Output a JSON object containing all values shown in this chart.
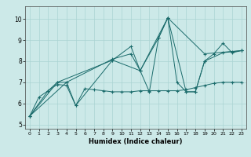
{
  "xlabel": "Humidex (Indice chaleur)",
  "xlim": [
    -0.5,
    23.5
  ],
  "ylim": [
    4.8,
    10.6
  ],
  "yticks": [
    5,
    6,
    7,
    8,
    9,
    10
  ],
  "xticks": [
    0,
    1,
    2,
    3,
    4,
    5,
    6,
    7,
    8,
    9,
    10,
    11,
    12,
    13,
    14,
    15,
    16,
    17,
    18,
    19,
    20,
    21,
    22,
    23
  ],
  "background_color": "#cce9e8",
  "grid_color": "#aad4d3",
  "line_color": "#1a6b6b",
  "lines": [
    {
      "x": [
        0,
        1,
        2,
        3,
        4,
        5,
        6,
        7,
        8,
        9,
        10,
        11,
        12,
        13,
        14,
        15,
        16,
        17,
        18,
        19,
        20,
        21,
        22,
        23
      ],
      "y": [
        5.4,
        6.3,
        6.6,
        6.9,
        6.85,
        5.9,
        6.7,
        6.65,
        6.6,
        6.55,
        6.55,
        6.55,
        6.6,
        6.6,
        6.6,
        6.6,
        6.6,
        6.65,
        6.75,
        6.85,
        6.95,
        7.0,
        7.0,
        7.0
      ]
    },
    {
      "x": [
        0,
        2,
        3,
        4,
        5,
        9,
        11,
        12,
        13,
        14,
        15,
        16,
        17,
        18,
        19,
        20,
        21,
        22,
        23
      ],
      "y": [
        5.4,
        6.6,
        7.0,
        7.0,
        5.9,
        8.05,
        8.7,
        7.55,
        6.55,
        9.1,
        10.05,
        7.0,
        6.55,
        6.55,
        8.0,
        8.35,
        8.85,
        8.4,
        8.5
      ]
    },
    {
      "x": [
        0,
        3,
        9,
        12,
        14,
        15,
        19,
        23
      ],
      "y": [
        5.4,
        7.0,
        8.05,
        7.55,
        9.1,
        10.05,
        8.35,
        8.5
      ]
    },
    {
      "x": [
        0,
        4,
        9,
        11,
        12,
        15,
        17,
        18,
        19,
        21,
        22,
        23
      ],
      "y": [
        5.4,
        7.0,
        8.1,
        8.35,
        7.55,
        10.05,
        6.55,
        6.55,
        8.0,
        8.4,
        8.45,
        8.5
      ]
    }
  ]
}
